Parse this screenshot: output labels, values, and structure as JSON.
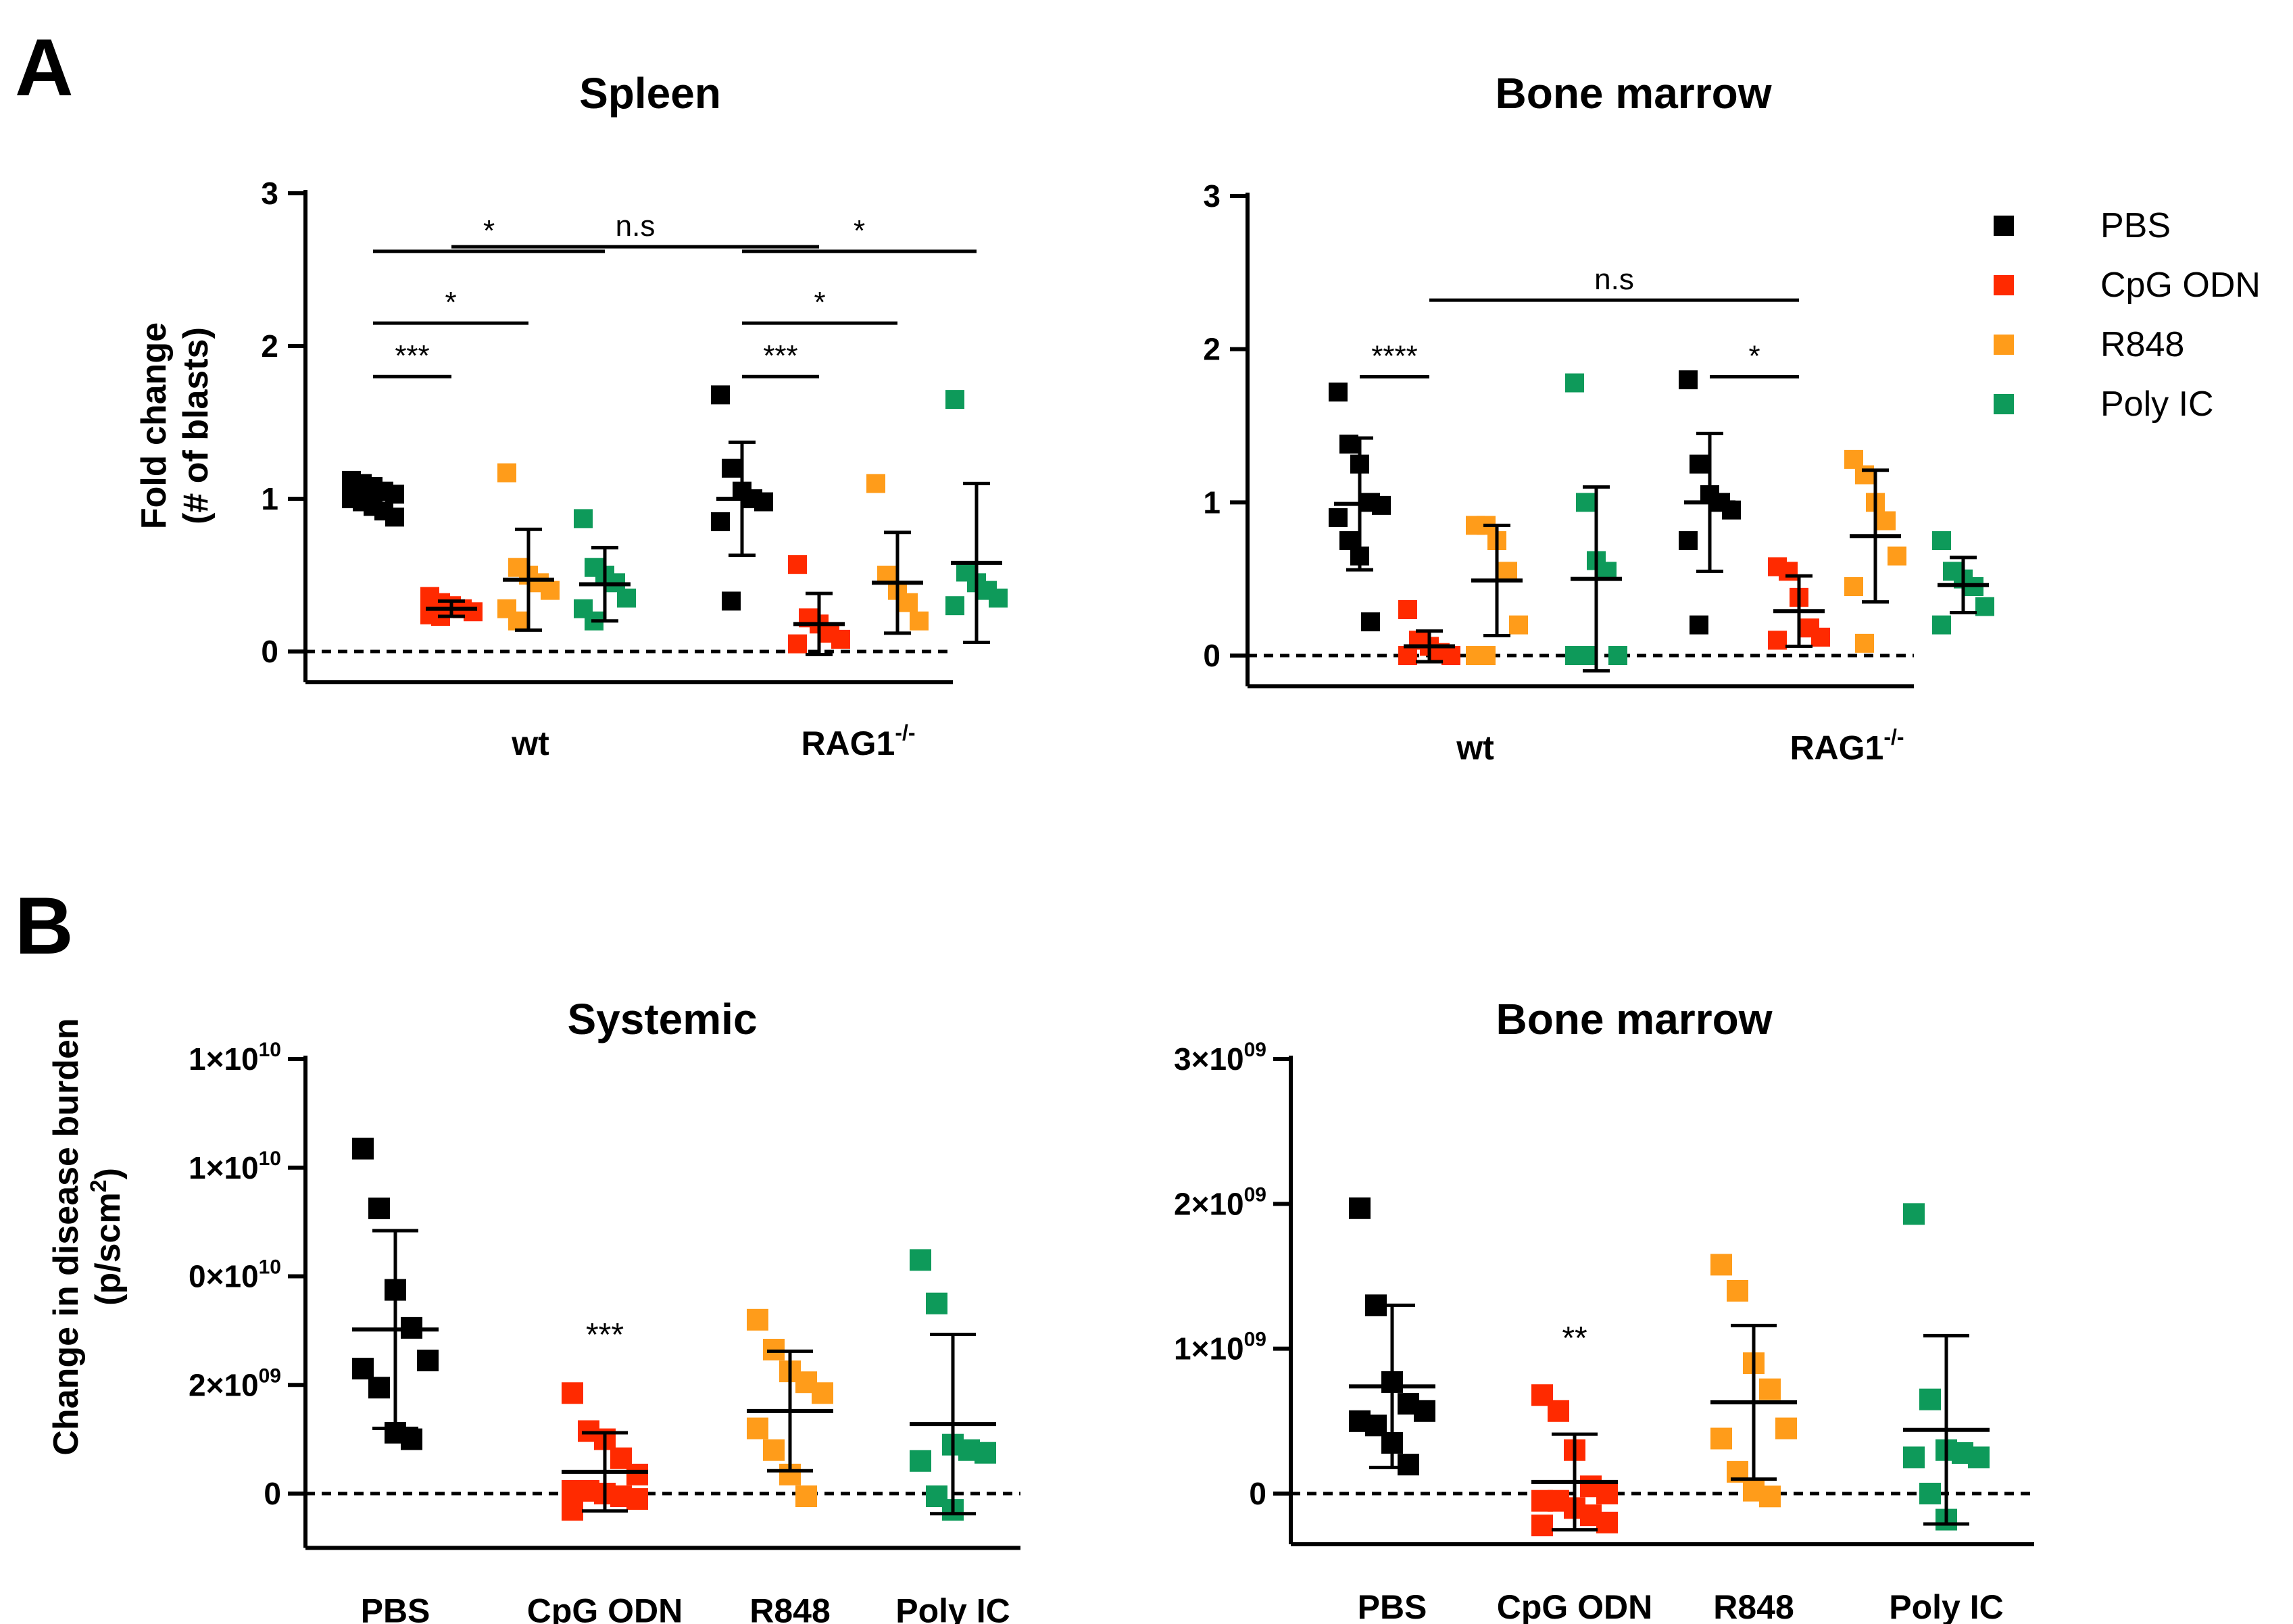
{
  "panel_labels": [
    "A",
    "B"
  ],
  "legend": [
    {
      "label": "PBS",
      "color": "#000000"
    },
    {
      "label": "CpG ODN",
      "color": "#ff2a00"
    },
    {
      "label": "R848",
      "color": "#ff9c1a"
    },
    {
      "label": "Poly IC",
      "color": "#0e9a5a"
    }
  ],
  "chart_data": [
    {
      "type": "scatter",
      "title": "Spleen",
      "ylabel": [
        "Fold change",
        "(# of blasts)"
      ],
      "ylim": [
        -0.2,
        3
      ],
      "yticks": [
        0,
        1,
        2,
        3
      ],
      "groups": [
        {
          "label": "wt",
          "sup": ""
        },
        {
          "label": "RAG1",
          "sup": "-/-"
        }
      ],
      "points": [
        {
          "series": 0,
          "group": 0,
          "mean": 1.0,
          "sd": 0.07,
          "values": [
            1.12,
            1.1,
            1.08,
            1.05,
            1.03,
            1.0,
            0.98,
            0.95,
            0.92,
            0.88
          ]
        },
        {
          "series": 1,
          "group": 0,
          "mean": 0.28,
          "sd": 0.05,
          "values": [
            0.36,
            0.32,
            0.3,
            0.28,
            0.26,
            0.24,
            0.23
          ]
        },
        {
          "series": 2,
          "group": 0,
          "mean": 0.47,
          "sd": 0.33,
          "values": [
            1.17,
            0.55,
            0.5,
            0.45,
            0.4,
            0.28,
            0.2
          ]
        },
        {
          "series": 3,
          "group": 0,
          "mean": 0.44,
          "sd": 0.24,
          "values": [
            0.87,
            0.55,
            0.5,
            0.45,
            0.35,
            0.28,
            0.2
          ]
        },
        {
          "series": 0,
          "group": 1,
          "mean": 1.0,
          "sd": 0.37,
          "values": [
            1.68,
            1.2,
            1.05,
            1.0,
            0.98,
            0.85,
            0.33
          ]
        },
        {
          "series": 1,
          "group": 1,
          "mean": 0.18,
          "sd": 0.2,
          "values": [
            0.57,
            0.22,
            0.18,
            0.12,
            0.08,
            0.05
          ]
        },
        {
          "series": 2,
          "group": 1,
          "mean": 0.45,
          "sd": 0.33,
          "values": [
            1.1,
            0.5,
            0.4,
            0.32,
            0.2
          ]
        },
        {
          "series": 3,
          "group": 1,
          "mean": 0.58,
          "sd": 0.52,
          "values": [
            1.65,
            0.52,
            0.45,
            0.4,
            0.35,
            0.3
          ]
        }
      ],
      "brackets": [
        {
          "from": [
            0,
            0
          ],
          "to": [
            1,
            0
          ],
          "level": 1.8,
          "label": "***"
        },
        {
          "from": [
            0,
            0
          ],
          "to": [
            2,
            0
          ],
          "level": 2.15,
          "label": "*"
        },
        {
          "from": [
            0,
            0
          ],
          "to": [
            3,
            0
          ],
          "level": 2.62,
          "label": "*"
        },
        {
          "from": [
            1,
            0
          ],
          "to": [
            1,
            1
          ],
          "level": 2.65,
          "label": "n.s"
        },
        {
          "from": [
            0,
            1
          ],
          "to": [
            1,
            1
          ],
          "level": 1.8,
          "label": "***"
        },
        {
          "from": [
            0,
            1
          ],
          "to": [
            2,
            1
          ],
          "level": 2.15,
          "label": "*"
        },
        {
          "from": [
            0,
            1
          ],
          "to": [
            3,
            1
          ],
          "level": 2.62,
          "label": "*"
        }
      ]
    },
    {
      "type": "scatter",
      "title": "Bone marrow",
      "ylabel": [],
      "ylim": [
        -0.2,
        3
      ],
      "yticks": [
        0,
        1,
        2,
        3
      ],
      "groups": [
        {
          "label": "wt",
          "sup": ""
        },
        {
          "label": "RAG1",
          "sup": "-/-"
        }
      ],
      "points": [
        {
          "series": 0,
          "group": 0,
          "mean": 0.99,
          "sd": 0.43,
          "values": [
            1.72,
            1.38,
            1.25,
            1.0,
            0.98,
            0.9,
            0.75,
            0.65,
            0.22
          ]
        },
        {
          "series": 1,
          "group": 0,
          "mean": 0.06,
          "sd": 0.1,
          "values": [
            0.3,
            0.1,
            0.06,
            0.02,
            0.0,
            0.0
          ]
        },
        {
          "series": 2,
          "group": 0,
          "mean": 0.49,
          "sd": 0.36,
          "values": [
            0.85,
            0.85,
            0.75,
            0.55,
            0.2,
            0.0,
            0.0
          ]
        },
        {
          "series": 3,
          "group": 0,
          "mean": 0.5,
          "sd": 0.6,
          "values": [
            1.78,
            1.0,
            0.62,
            0.55,
            0.0,
            0.0,
            0.0
          ]
        },
        {
          "series": 0,
          "group": 1,
          "mean": 1.0,
          "sd": 0.45,
          "values": [
            1.8,
            1.25,
            1.05,
            1.0,
            0.95,
            0.75,
            0.2
          ]
        },
        {
          "series": 1,
          "group": 1,
          "mean": 0.29,
          "sd": 0.23,
          "values": [
            0.58,
            0.55,
            0.38,
            0.18,
            0.12,
            0.1
          ]
        },
        {
          "series": 2,
          "group": 1,
          "mean": 0.78,
          "sd": 0.43,
          "values": [
            1.28,
            1.18,
            1.0,
            0.88,
            0.65,
            0.45,
            0.08
          ]
        },
        {
          "series": 3,
          "group": 1,
          "mean": 0.46,
          "sd": 0.18,
          "values": [
            0.75,
            0.55,
            0.5,
            0.45,
            0.32,
            0.2
          ]
        }
      ],
      "brackets": [
        {
          "from": [
            0,
            0
          ],
          "to": [
            1,
            0
          ],
          "level": 1.82,
          "label": "****"
        },
        {
          "from": [
            1,
            0
          ],
          "to": [
            1,
            1
          ],
          "level": 2.32,
          "label": "n.s"
        },
        {
          "from": [
            0,
            1
          ],
          "to": [
            1,
            1
          ],
          "level": 1.82,
          "label": "*"
        }
      ]
    },
    {
      "type": "scatter",
      "title": "Systemic",
      "ylabel": [
        "Change in disease burden",
        "(p/scm²)"
      ],
      "ylim": [
        -1000000000.0,
        8000000000.0
      ],
      "yticks": [
        0,
        2000000000.0,
        4000000000.0,
        6000000000.0,
        8000000000.0
      ],
      "categories": [
        "PBS",
        "CpG ODN",
        "R848",
        "Poly IC"
      ],
      "points": [
        {
          "series": 0,
          "group": 0,
          "mean": 3020000000.0,
          "sd": 1820000000.0,
          "values": [
            6350000000.0,
            5250000000.0,
            3750000000.0,
            3050000000.0,
            2450000000.0,
            2300000000.0,
            1950000000.0,
            1120000000.0,
            1000000000.0
          ]
        },
        {
          "series": 1,
          "group": 1,
          "mean": 400000000.0,
          "sd": 720000000.0,
          "values": [
            1850000000.0,
            1150000000.0,
            1000000000.0,
            650000000.0,
            350000000.0,
            50000000.0,
            50000000.0,
            0.0,
            -50000000.0,
            -100000000.0,
            -300000000.0
          ]
        },
        {
          "series": 2,
          "group": 2,
          "mean": 1520000000.0,
          "sd": 1100000000.0,
          "values": [
            3200000000.0,
            2650000000.0,
            2250000000.0,
            2050000000.0,
            1850000000.0,
            1200000000.0,
            800000000.0,
            350000000.0,
            -50000000.0
          ]
        },
        {
          "series": 3,
          "group": 3,
          "mean": 1280000000.0,
          "sd": 1650000000.0,
          "values": [
            4300000000.0,
            3500000000.0,
            900000000.0,
            800000000.0,
            750000000.0,
            600000000.0,
            -50000000.0,
            -300000000.0
          ]
        }
      ],
      "annotations": [
        {
          "group": 1,
          "label": "***",
          "value": 3000000000.0
        }
      ]
    },
    {
      "type": "scatter",
      "title": "Bone marrow",
      "ylabel": [],
      "ylim": [
        -350000000.0,
        3000000000.0
      ],
      "yticks": [
        0,
        1000000000.0,
        2000000000.0,
        3000000000.0
      ],
      "categories": [
        "PBS",
        "CpG ODN",
        "R848",
        "Poly IC"
      ],
      "points": [
        {
          "series": 0,
          "group": 0,
          "mean": 740000000.0,
          "sd": 560000000.0,
          "values": [
            1970000000.0,
            1300000000.0,
            770000000.0,
            620000000.0,
            570000000.0,
            500000000.0,
            470000000.0,
            350000000.0,
            200000000.0
          ]
        },
        {
          "series": 1,
          "group": 1,
          "mean": 80000000.0,
          "sd": 330000000.0,
          "values": [
            680000000.0,
            570000000.0,
            300000000.0,
            50000000.0,
            0.0,
            -50000000.0,
            -50000000.0,
            -100000000.0,
            -150000000.0,
            -200000000.0,
            -220000000.0
          ]
        },
        {
          "series": 2,
          "group": 2,
          "mean": 630000000.0,
          "sd": 530000000.0,
          "values": [
            1580000000.0,
            1400000000.0,
            900000000.0,
            720000000.0,
            450000000.0,
            380000000.0,
            150000000.0,
            20000000.0,
            -20000000.0
          ]
        },
        {
          "series": 3,
          "group": 3,
          "mean": 440000000.0,
          "sd": 650000000.0,
          "values": [
            1930000000.0,
            650000000.0,
            300000000.0,
            280000000.0,
            250000000.0,
            250000000.0,
            0.0,
            -180000000.0
          ]
        }
      ],
      "annotations": [
        {
          "group": 1,
          "label": "**",
          "value": 1100000000.0
        }
      ]
    }
  ]
}
